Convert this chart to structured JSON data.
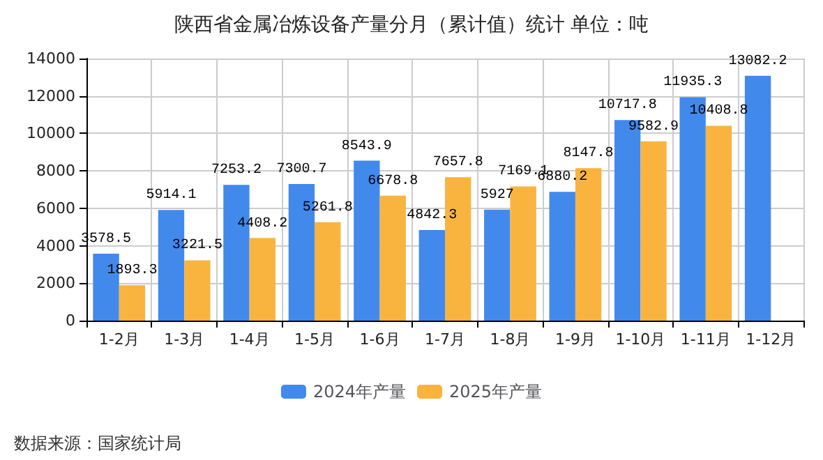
{
  "chart_data": {
    "type": "bar",
    "title": "陕西省金属冶炼设备产量分月（累计值）统计 单位：吨",
    "categories": [
      "1-2月",
      "1-3月",
      "1-4月",
      "1-5月",
      "1-6月",
      "1-7月",
      "1-8月",
      "1-9月",
      "1-10月",
      "1-11月",
      "1-12月"
    ],
    "series": [
      {
        "name": "2024年产量",
        "color": "#4289ec",
        "values": [
          3578.5,
          5914.1,
          7253.2,
          7300.7,
          8543.9,
          4842.3,
          5927,
          6880.2,
          10717.8,
          11935.3,
          13082.2
        ]
      },
      {
        "name": "2025年产量",
        "color": "#f9b43f",
        "values": [
          1893.3,
          3221.5,
          4408.2,
          5261.8,
          6678.8,
          7657.8,
          7169.1,
          8147.8,
          9582.9,
          10408.8,
          null
        ]
      }
    ],
    "ylim": [
      0,
      14000
    ],
    "yticks": [
      0,
      2000,
      4000,
      6000,
      8000,
      10000,
      12000,
      14000
    ],
    "grid": true,
    "legend": "bottom",
    "data_labels": true,
    "annotations": [
      "数据来源：国家统计局"
    ]
  }
}
